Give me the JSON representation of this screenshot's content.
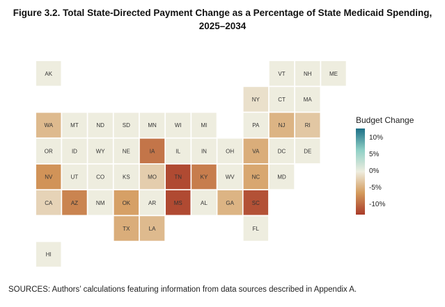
{
  "chart_data": {
    "type": "tile-map",
    "title_line1": "Figure 3.2. Total State-Directed Payment Change as a Percentage of State Medicaid Spending,",
    "title_line2": "2025–2034",
    "legend": {
      "title": "Budget Change",
      "ticks": [
        {
          "label": "10%",
          "value": 10
        },
        {
          "label": "5%",
          "value": 5
        },
        {
          "label": "0%",
          "value": 0
        },
        {
          "label": "-5%",
          "value": -5
        },
        {
          "label": "-10%",
          "value": -10
        }
      ],
      "range": [
        -13,
        13
      ],
      "colors": {
        "neg_strong": "#a93b2a",
        "neg_mid": "#d49a5c",
        "neutral": "#eeeddf",
        "pos_mid": "#8fd0c6",
        "pos_strong": "#1c6f86"
      }
    },
    "states": [
      {
        "abbr": "AK",
        "row": 0,
        "col": 0,
        "value": 0
      },
      {
        "abbr": "VT",
        "row": 0,
        "col": 9,
        "value": 0
      },
      {
        "abbr": "NH",
        "row": 0,
        "col": 10,
        "value": 0
      },
      {
        "abbr": "ME",
        "row": 0,
        "col": 11,
        "value": 0
      },
      {
        "abbr": "NY",
        "row": 1,
        "col": 8,
        "value": -1
      },
      {
        "abbr": "CT",
        "row": 1,
        "col": 9,
        "value": 0
      },
      {
        "abbr": "MA",
        "row": 1,
        "col": 10,
        "value": 0
      },
      {
        "abbr": "WA",
        "row": 2,
        "col": 0,
        "value": -4
      },
      {
        "abbr": "MT",
        "row": 2,
        "col": 1,
        "value": 0
      },
      {
        "abbr": "ND",
        "row": 2,
        "col": 2,
        "value": 0
      },
      {
        "abbr": "SD",
        "row": 2,
        "col": 3,
        "value": 0
      },
      {
        "abbr": "MN",
        "row": 2,
        "col": 4,
        "value": 0
      },
      {
        "abbr": "WI",
        "row": 2,
        "col": 5,
        "value": 0
      },
      {
        "abbr": "MI",
        "row": 2,
        "col": 6,
        "value": 0
      },
      {
        "abbr": "PA",
        "row": 2,
        "col": 8,
        "value": 0
      },
      {
        "abbr": "NJ",
        "row": 2,
        "col": 9,
        "value": -4.5
      },
      {
        "abbr": "RI",
        "row": 2,
        "col": 10,
        "value": -3
      },
      {
        "abbr": "OR",
        "row": 3,
        "col": 0,
        "value": 0
      },
      {
        "abbr": "ID",
        "row": 3,
        "col": 1,
        "value": 0
      },
      {
        "abbr": "WY",
        "row": 3,
        "col": 2,
        "value": 0
      },
      {
        "abbr": "NE",
        "row": 3,
        "col": 3,
        "value": 0
      },
      {
        "abbr": "IA",
        "row": 3,
        "col": 4,
        "value": -9
      },
      {
        "abbr": "IL",
        "row": 3,
        "col": 5,
        "value": 0
      },
      {
        "abbr": "IN",
        "row": 3,
        "col": 6,
        "value": 0
      },
      {
        "abbr": "OH",
        "row": 3,
        "col": 7,
        "value": 0
      },
      {
        "abbr": "VA",
        "row": 3,
        "col": 8,
        "value": -5
      },
      {
        "abbr": "DC",
        "row": 3,
        "col": 9,
        "value": 0
      },
      {
        "abbr": "DE",
        "row": 3,
        "col": 10,
        "value": 0
      },
      {
        "abbr": "NV",
        "row": 4,
        "col": 0,
        "value": -7
      },
      {
        "abbr": "UT",
        "row": 4,
        "col": 1,
        "value": 0
      },
      {
        "abbr": "CO",
        "row": 4,
        "col": 2,
        "value": 0
      },
      {
        "abbr": "KS",
        "row": 4,
        "col": 3,
        "value": 0
      },
      {
        "abbr": "MO",
        "row": 4,
        "col": 4,
        "value": -2.5
      },
      {
        "abbr": "TN",
        "row": 4,
        "col": 5,
        "value": -12
      },
      {
        "abbr": "KY",
        "row": 4,
        "col": 6,
        "value": -8.5
      },
      {
        "abbr": "WV",
        "row": 4,
        "col": 7,
        "value": 0
      },
      {
        "abbr": "NC",
        "row": 4,
        "col": 8,
        "value": -5.5
      },
      {
        "abbr": "MD",
        "row": 4,
        "col": 9,
        "value": 0
      },
      {
        "abbr": "CA",
        "row": 5,
        "col": 0,
        "value": -2
      },
      {
        "abbr": "AZ",
        "row": 5,
        "col": 1,
        "value": -8
      },
      {
        "abbr": "NM",
        "row": 5,
        "col": 2,
        "value": 0
      },
      {
        "abbr": "OK",
        "row": 5,
        "col": 3,
        "value": -6
      },
      {
        "abbr": "AR",
        "row": 5,
        "col": 4,
        "value": 0
      },
      {
        "abbr": "MS",
        "row": 5,
        "col": 5,
        "value": -12
      },
      {
        "abbr": "AL",
        "row": 5,
        "col": 6,
        "value": 0
      },
      {
        "abbr": "GA",
        "row": 5,
        "col": 7,
        "value": -4.5
      },
      {
        "abbr": "SC",
        "row": 5,
        "col": 8,
        "value": -11.5
      },
      {
        "abbr": "TX",
        "row": 6,
        "col": 3,
        "value": -5
      },
      {
        "abbr": "LA",
        "row": 6,
        "col": 4,
        "value": -4
      },
      {
        "abbr": "FL",
        "row": 6,
        "col": 8,
        "value": 0
      },
      {
        "abbr": "HI",
        "row": 7,
        "col": 0,
        "value": 0
      }
    ],
    "sources": "SOURCES: Authors’ calculations featuring information from data sources described in Appendix A."
  }
}
